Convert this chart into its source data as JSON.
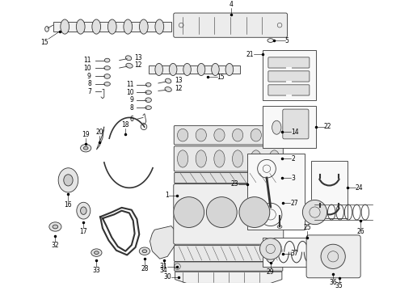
{
  "bg_color": "#ffffff",
  "line_color": "#333333",
  "text_color": "#000000",
  "figsize": [
    4.9,
    3.6
  ],
  "dpi": 100
}
